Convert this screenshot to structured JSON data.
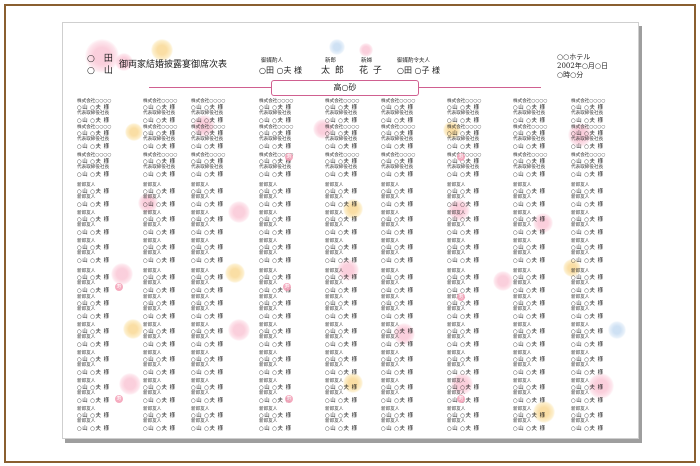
{
  "header": {
    "host_family_1": "○　田",
    "host_family_2": "○　山",
    "title": "御両家結婚披露宴御席次表",
    "groom_nakodo_role": "御媒酌人",
    "groom_nakodo_name": "○田 ○夫 様",
    "groom_role": "新郎",
    "groom_name": "太 郎",
    "bride_role": "新婦",
    "bride_name": "花 子",
    "bride_nakodo_role": "御媒酌令夫人",
    "bride_nakodo_name": "○田 ○子 様",
    "hotel": "○○ホテル",
    "date": "2002年○月○日",
    "time": "○時○分",
    "head_table": "高○砂"
  },
  "guest_templates": {
    "company": "株式会社○○○○",
    "title": "代表取締役社長",
    "name": "○山 ○夫 様",
    "relation": "新郎友人",
    "jyu": "寿"
  },
  "colors": {
    "frame": "#8a5f30",
    "accent": "#d06090",
    "flower_pink": "#f7a8bf",
    "flower_yellow": "#f6c35a",
    "flower_blue": "#a7c8ea"
  }
}
